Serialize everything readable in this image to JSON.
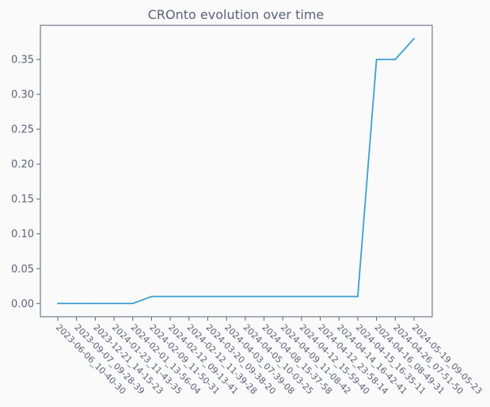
{
  "chart_data": {
    "type": "line",
    "title": "CROnto evolution over time",
    "xlabel": "",
    "ylabel": "",
    "x": [
      "2023-06-06_10-40-30",
      "2023-09-07_09-28-39",
      "2023-12-21_14-15-23",
      "2024-01-23_11-43-35",
      "2024-02-01_13-56-04",
      "2024-02-09_11-50-31",
      "2024-02-12_09-13-41",
      "2024-02-12_11-39-28",
      "2024-03-20_09-38-20",
      "2024-04-03_07-39-08",
      "2024-04-05_10-03-25",
      "2024-04-08_15-37-58",
      "2024-04-09_11-08-42",
      "2024-04-12_15-59-40",
      "2024-04-12_23-58-14",
      "2024-04-14_16-42-41",
      "2024-04-15_16-35-11",
      "2024-04-16_08-49-31",
      "2024-04-26_07-51-50",
      "2024-05-19_09-05-23"
    ],
    "series": [
      {
        "values": [
          0.0,
          0.0,
          0.0,
          0.0,
          0.0,
          0.01,
          0.01,
          0.01,
          0.01,
          0.01,
          0.01,
          0.01,
          0.01,
          0.01,
          0.01,
          0.01,
          0.01,
          0.35,
          0.35,
          0.38
        ],
        "color": "#3a9fd0"
      }
    ],
    "yticks": [
      "0.00",
      "0.05",
      "0.10",
      "0.15",
      "0.20",
      "0.25",
      "0.30",
      "0.35"
    ],
    "ylim": [
      -0.019,
      0.399
    ],
    "grid": false,
    "legend": "none"
  }
}
